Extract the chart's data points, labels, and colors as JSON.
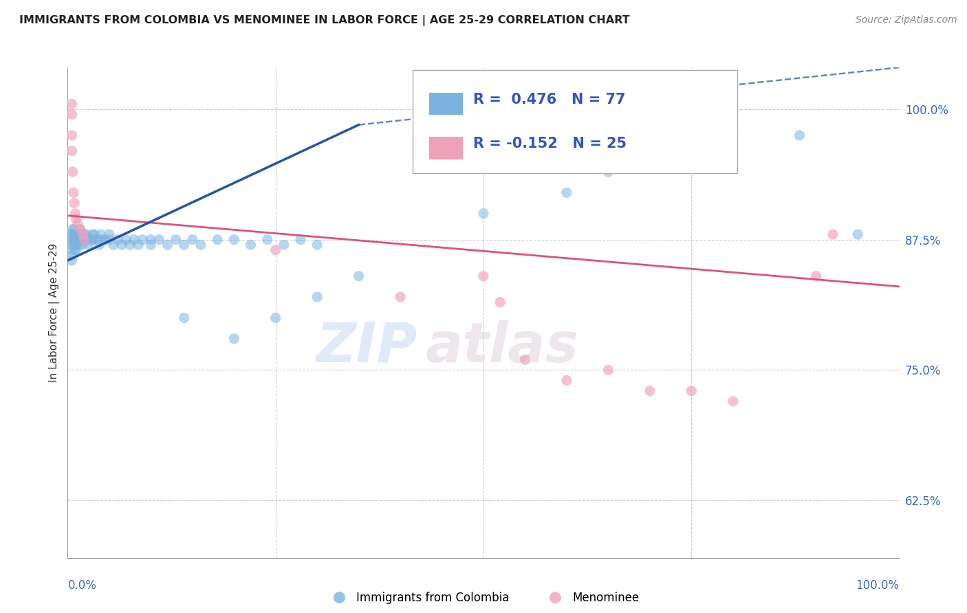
{
  "title": "IMMIGRANTS FROM COLOMBIA VS MENOMINEE IN LABOR FORCE | AGE 25-29 CORRELATION CHART",
  "source": "Source: ZipAtlas.com",
  "ylabel": "In Labor Force | Age 25-29",
  "xmin": 0.0,
  "xmax": 1.0,
  "ymin": 0.57,
  "ymax": 1.04,
  "yticks": [
    0.625,
    0.75,
    0.875,
    1.0
  ],
  "ytick_labels": [
    "62.5%",
    "75.0%",
    "87.5%",
    "100.0%"
  ],
  "watermark_zip": "ZIP",
  "watermark_atlas": "atlas",
  "blue_R": 0.476,
  "blue_N": 77,
  "pink_R": -0.152,
  "pink_N": 25,
  "blue_color": "#7ab3e0",
  "pink_color": "#f0a0b8",
  "blue_line_color": "#2255aa",
  "pink_line_color": "#e0507a",
  "legend_label_blue": "Immigrants from Colombia",
  "legend_label_pink": "Menominee",
  "blue_line_x0": 0.0,
  "blue_line_y0": 0.855,
  "blue_line_x1": 0.35,
  "blue_line_y1": 0.985,
  "blue_line_dash_x1": 1.0,
  "blue_line_dash_y1": 1.04,
  "pink_line_x0": 0.0,
  "pink_line_y0": 0.898,
  "pink_line_x1": 1.0,
  "pink_line_y1": 0.83,
  "blue_x": [
    0.005,
    0.005,
    0.005,
    0.005,
    0.005,
    0.005,
    0.006,
    0.006,
    0.007,
    0.007,
    0.008,
    0.008,
    0.008,
    0.009,
    0.009,
    0.01,
    0.01,
    0.01,
    0.01,
    0.012,
    0.013,
    0.014,
    0.015,
    0.015,
    0.016,
    0.018,
    0.018,
    0.02,
    0.02,
    0.022,
    0.025,
    0.025,
    0.028,
    0.03,
    0.03,
    0.032,
    0.035,
    0.038,
    0.04,
    0.04,
    0.045,
    0.05,
    0.05,
    0.055,
    0.06,
    0.065,
    0.07,
    0.075,
    0.08,
    0.085,
    0.09,
    0.1,
    0.1,
    0.11,
    0.12,
    0.13,
    0.14,
    0.15,
    0.16,
    0.18,
    0.2,
    0.22,
    0.24,
    0.26,
    0.28,
    0.3,
    0.14,
    0.2,
    0.25,
    0.3,
    0.35,
    0.5,
    0.6,
    0.65,
    0.8,
    0.88,
    0.95
  ],
  "blue_y": [
    0.88,
    0.875,
    0.87,
    0.865,
    0.86,
    0.855,
    0.885,
    0.88,
    0.875,
    0.87,
    0.885,
    0.88,
    0.875,
    0.87,
    0.865,
    0.88,
    0.875,
    0.87,
    0.865,
    0.88,
    0.875,
    0.87,
    0.885,
    0.875,
    0.88,
    0.875,
    0.87,
    0.88,
    0.875,
    0.88,
    0.875,
    0.87,
    0.875,
    0.88,
    0.875,
    0.88,
    0.875,
    0.87,
    0.875,
    0.88,
    0.875,
    0.88,
    0.875,
    0.87,
    0.875,
    0.87,
    0.875,
    0.87,
    0.875,
    0.87,
    0.875,
    0.875,
    0.87,
    0.875,
    0.87,
    0.875,
    0.87,
    0.875,
    0.87,
    0.875,
    0.875,
    0.87,
    0.875,
    0.87,
    0.875,
    0.87,
    0.8,
    0.78,
    0.8,
    0.82,
    0.84,
    0.9,
    0.92,
    0.94,
    0.975,
    0.975,
    0.88
  ],
  "pink_x": [
    0.005,
    0.005,
    0.005,
    0.005,
    0.006,
    0.007,
    0.008,
    0.009,
    0.01,
    0.012,
    0.015,
    0.018,
    0.02,
    0.25,
    0.4,
    0.5,
    0.52,
    0.55,
    0.6,
    0.65,
    0.7,
    0.75,
    0.8,
    0.9,
    0.92
  ],
  "pink_y": [
    1.005,
    0.995,
    0.975,
    0.96,
    0.94,
    0.92,
    0.91,
    0.9,
    0.895,
    0.89,
    0.885,
    0.88,
    0.875,
    0.865,
    0.82,
    0.84,
    0.815,
    0.76,
    0.74,
    0.75,
    0.73,
    0.73,
    0.72,
    0.84,
    0.88
  ]
}
